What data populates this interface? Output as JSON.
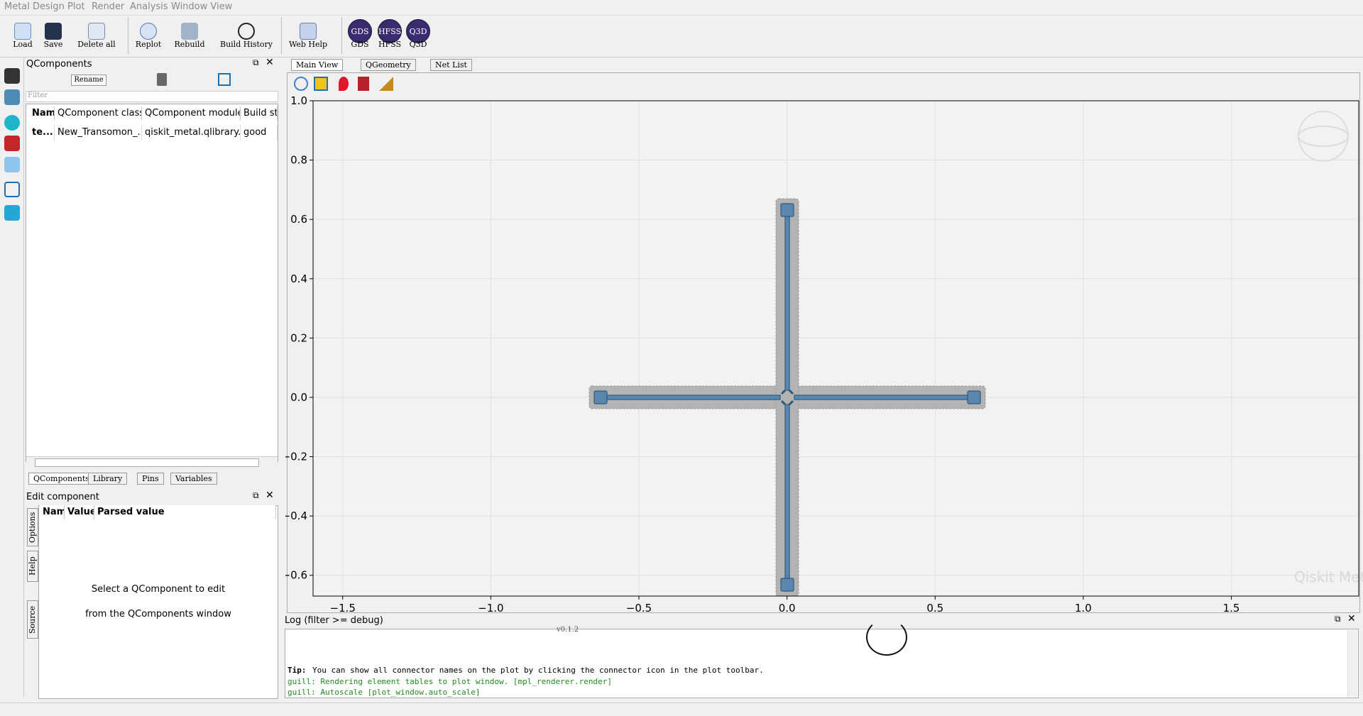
{
  "menu": [
    "Metal Design",
    "Plot",
    "Render",
    "Analysis",
    "Window View"
  ],
  "toolbar": [
    "Load",
    "Save",
    "Delete all",
    "Replot",
    "Rebuild",
    "Build History",
    "Web Help",
    "GDS",
    "HFSS",
    "Q3D"
  ],
  "toolbar_badges": [
    "GDS",
    "HFSS",
    "Q3D"
  ],
  "qcomponents": {
    "title": "QComponents",
    "rename": "Rename",
    "filter": "Filter",
    "columns": [
      "Name",
      "QComponent class",
      "QComponent module",
      "Build st"
    ],
    "rows": [
      [
        "te...",
        "New_Transomon_...",
        "qiskit_metal.qlibrary....",
        "good"
      ]
    ],
    "tabs": [
      "QComponents",
      "Library",
      "Pins",
      "Variables"
    ]
  },
  "edit_component": {
    "title": "Edit component",
    "columns": [
      "Nam",
      "Value",
      "Parsed value"
    ],
    "message": [
      "Select a QComponent to edit",
      "from the QComponents window"
    ],
    "side_tabs": [
      "Options",
      "Help",
      "Source"
    ]
  },
  "view_tabs": [
    "Main View",
    "QGeometry",
    "Net List"
  ],
  "plot": {
    "xlim": [
      -1.6,
      1.93
    ],
    "ylim": [
      -0.67,
      1.0
    ],
    "xticks": [
      {
        "value": -1.5,
        "label": "−1.5"
      },
      {
        "value": -1.0,
        "label": "−1.0"
      },
      {
        "value": -0.5,
        "label": "−0.5"
      },
      {
        "value": 0.0,
        "label": "0.0"
      },
      0.5,
      {
        "value": 1.0,
        "label": "1.0"
      },
      1.5
    ],
    "yticks": [
      {
        "value": -0.6,
        "label": "−0.6"
      },
      {
        "value": -0.4,
        "label": "−0.4"
      },
      {
        "value": -0.2,
        "label": "−0.2"
      },
      {
        "value": 0.0,
        "label": "0.0"
      },
      0.2,
      0.4,
      0.6,
      0.8,
      {
        "value": 1.0,
        "label": "1.0"
      }
    ],
    "grid": true,
    "watermark": "Qiskit Metal"
  },
  "log": {
    "title": "Log  (filter >= debug)",
    "version": "v0.1.2",
    "tip_label": "Tip:",
    "tip": "You can show all connector names on the plot by clicking the connector icon in the plot toolbar.",
    "lines": [
      "guill: Rendering element tables to plot window. [mpl_renderer.render]",
      "guill: Autoscale [plot_window.auto_scale]"
    ]
  }
}
